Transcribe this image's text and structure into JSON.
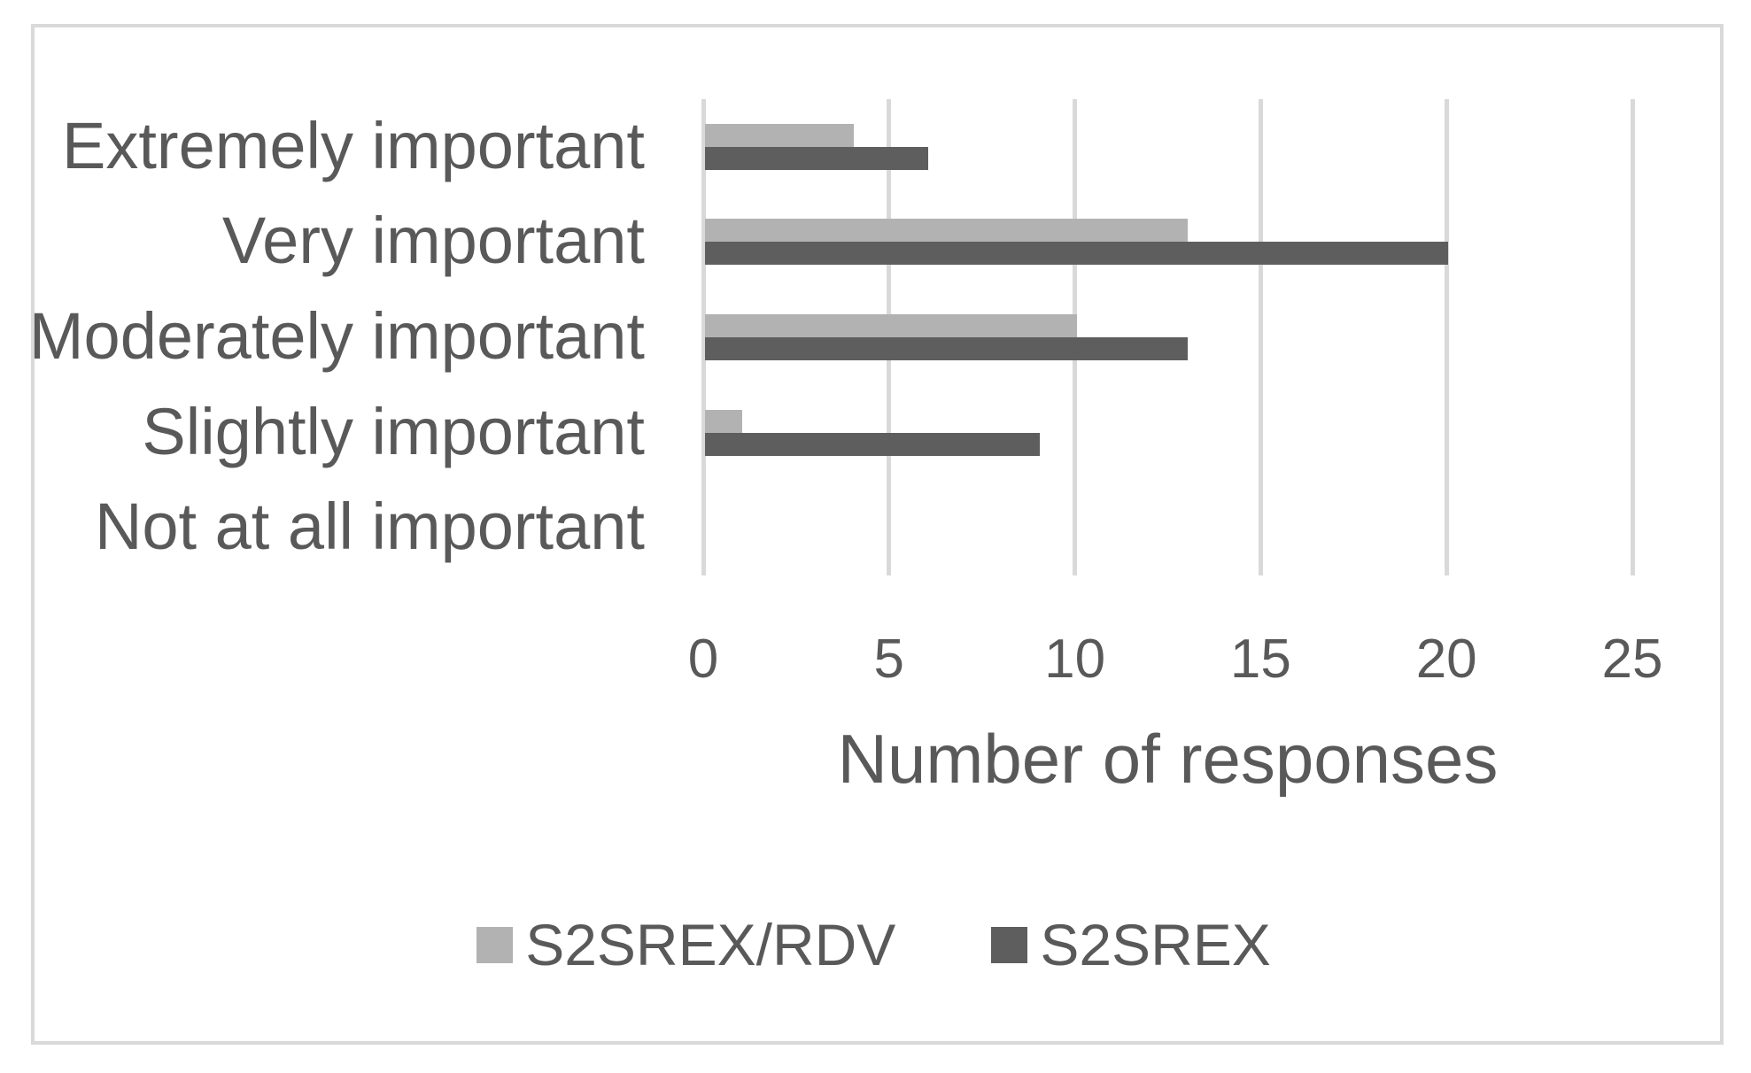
{
  "chart_data": {
    "type": "bar",
    "orientation": "horizontal",
    "title": "",
    "xlabel": "Number of responses",
    "ylabel": "",
    "categories": [
      "Extremely important",
      "Very important",
      "Moderately important",
      "Slightly important",
      "Not at all important"
    ],
    "series": [
      {
        "name": "S2SREX/RDV",
        "color": "#b2b2b2",
        "values": [
          4,
          13,
          10,
          1,
          0
        ]
      },
      {
        "name": "S2SREX",
        "color": "#5e5e5e",
        "values": [
          6,
          20,
          13,
          9,
          0
        ]
      }
    ],
    "xlim": [
      0,
      25
    ],
    "x_ticks": [
      "0",
      "5",
      "10",
      "15",
      "20",
      "25"
    ],
    "grid": true,
    "legend_position": "bottom-center"
  },
  "colors": {
    "grid": "#d9d9d9",
    "chart_border": "#d9d9d9",
    "text": "#595959",
    "background": "#ffffff"
  }
}
